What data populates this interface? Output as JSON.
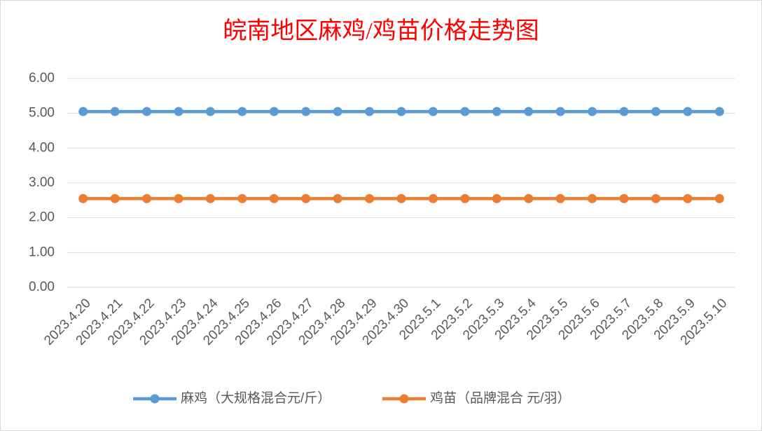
{
  "chart_data": {
    "type": "line",
    "title": "皖南地区麻鸡/鸡苗价格走势图",
    "categories": [
      "2023.4.20",
      "2023.4.21",
      "2023.4.22",
      "2023.4.23",
      "2023.4.24",
      "2023.4.25",
      "2023.4.26",
      "2023.4.27",
      "2023.4.28",
      "2023.4.29",
      "2023.4.30",
      "2023.5.1",
      "2023.5.2",
      "2023.5.3",
      "2023.5.4",
      "2023.5.5",
      "2023.5.6",
      "2023.5.7",
      "2023.5.8",
      "2023.5.9",
      "2023.5.10"
    ],
    "series": [
      {
        "name": "麻鸡（大规格混合元/斤）",
        "color": "#5b9bd5",
        "values": [
          5.05,
          5.05,
          5.05,
          5.05,
          5.05,
          5.05,
          5.05,
          5.05,
          5.05,
          5.05,
          5.05,
          5.05,
          5.05,
          5.05,
          5.05,
          5.05,
          5.05,
          5.05,
          5.05,
          5.05,
          5.05
        ]
      },
      {
        "name": "鸡苗（品牌混合 元/羽）",
        "color": "#ed7d31",
        "values": [
          2.55,
          2.55,
          2.55,
          2.55,
          2.55,
          2.55,
          2.55,
          2.55,
          2.55,
          2.55,
          2.55,
          2.55,
          2.55,
          2.55,
          2.55,
          2.55,
          2.55,
          2.55,
          2.55,
          2.55,
          2.55
        ]
      }
    ],
    "ylim": [
      0,
      6
    ],
    "yticks": [
      {
        "value": 0,
        "label": "0.00"
      },
      {
        "value": 1,
        "label": "1.00"
      },
      {
        "value": 2,
        "label": "2.00"
      },
      {
        "value": 3,
        "label": "3.00"
      },
      {
        "value": 4,
        "label": "4.00"
      },
      {
        "value": 5,
        "label": "5.00"
      },
      {
        "value": 6,
        "label": "6.00"
      }
    ],
    "grid": true,
    "legend": "bottom"
  }
}
